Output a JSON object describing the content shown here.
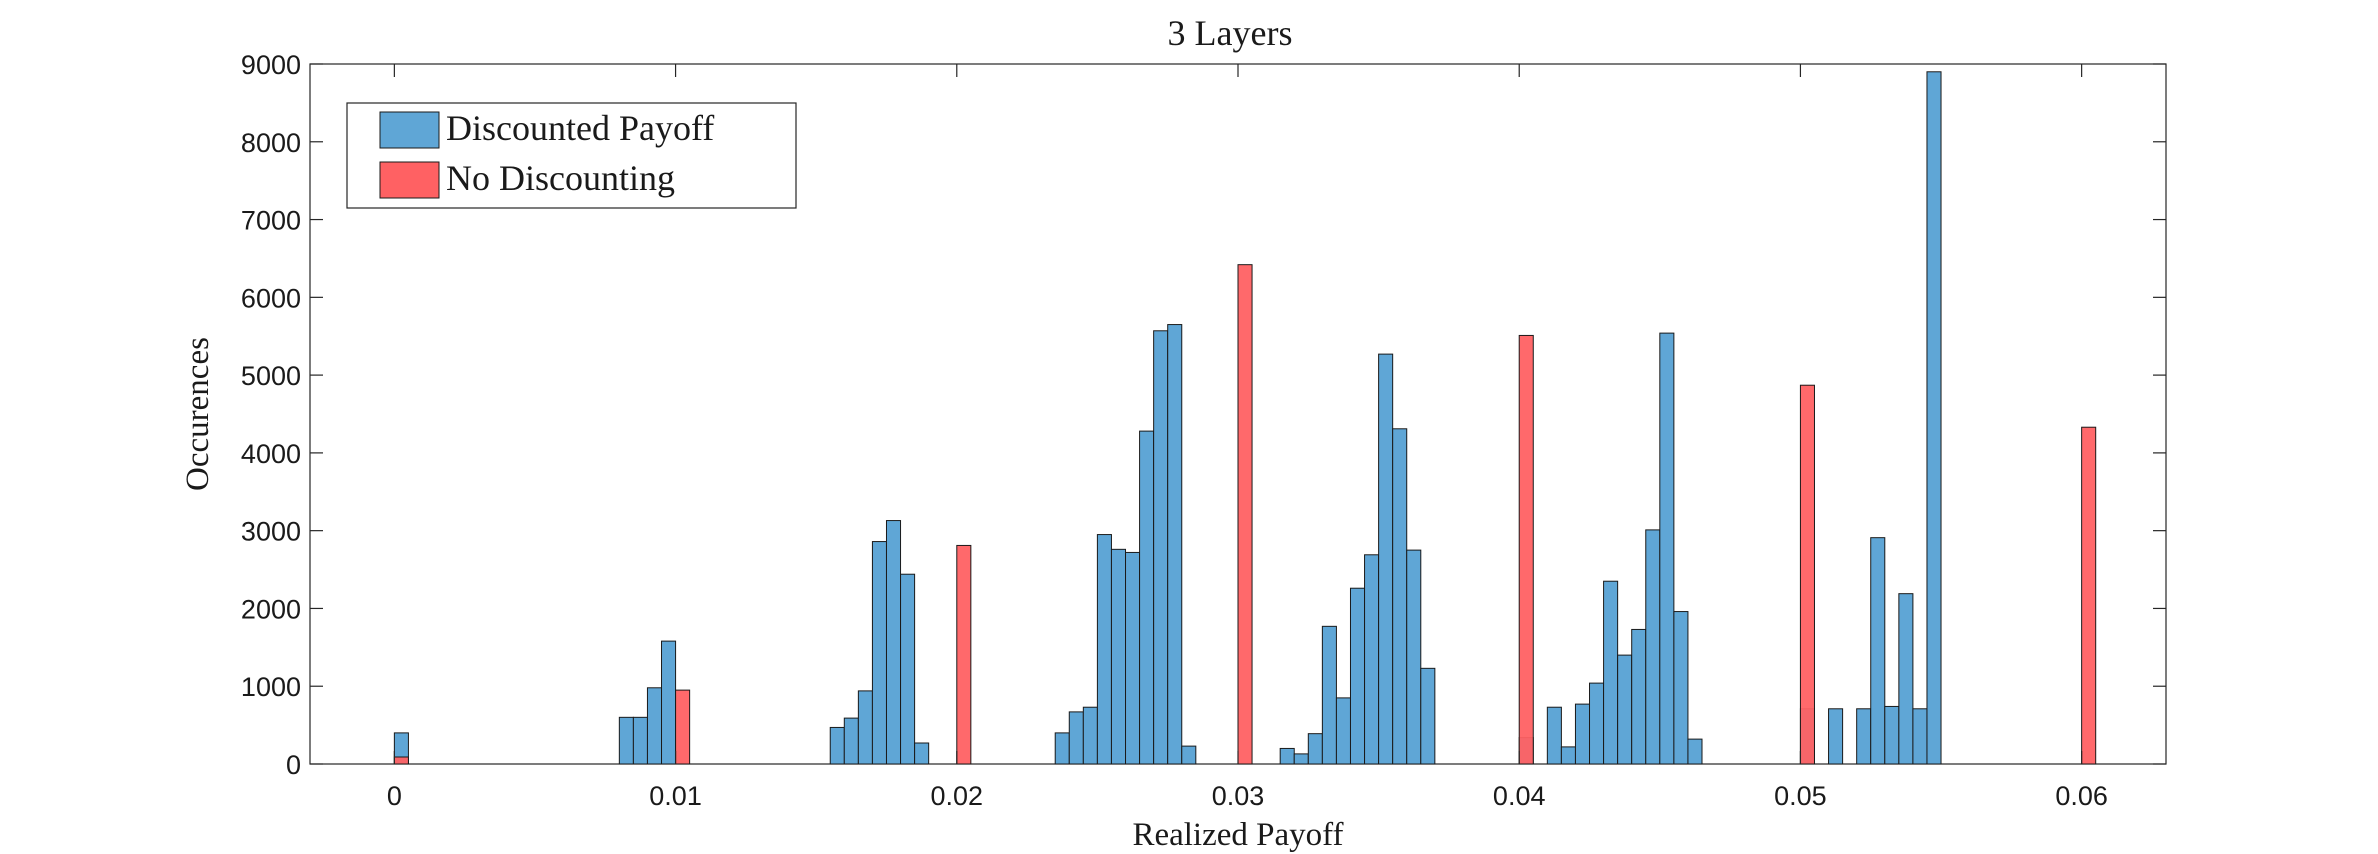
{
  "chart_data": {
    "type": "bar",
    "title": "3 Layers",
    "xlabel": "Realized Payoff",
    "ylabel": "Occurences",
    "xlim": [
      -0.003,
      0.063
    ],
    "ylim": [
      0,
      9000
    ],
    "xticks": [
      0,
      0.01,
      0.02,
      0.03,
      0.04,
      0.05,
      0.06
    ],
    "xtick_labels": [
      "0",
      "0.01",
      "0.02",
      "0.03",
      "0.04",
      "0.05",
      "0.06"
    ],
    "yticks": [
      0,
      1000,
      2000,
      3000,
      4000,
      5000,
      6000,
      7000,
      8000,
      9000
    ],
    "ytick_labels": [
      "0",
      "1000",
      "2000",
      "3000",
      "4000",
      "5000",
      "6000",
      "7000",
      "8000",
      "9000"
    ],
    "grid": false,
    "legend_position": "top-left",
    "series": [
      {
        "name": "Discounted Payoff",
        "color": "#5fa6d6",
        "bin_width": 0.0005,
        "bins": [
          [
            0,
            400
          ],
          [
            0.008,
            600
          ],
          [
            0.0085,
            600
          ],
          [
            0.009,
            980
          ],
          [
            0.0095,
            1580
          ],
          [
            0.0155,
            470
          ],
          [
            0.016,
            590
          ],
          [
            0.0165,
            940
          ],
          [
            0.017,
            2860
          ],
          [
            0.0175,
            3130
          ],
          [
            0.018,
            2440
          ],
          [
            0.0185,
            270
          ],
          [
            0.0235,
            400
          ],
          [
            0.024,
            670
          ],
          [
            0.0245,
            730
          ],
          [
            0.025,
            2950
          ],
          [
            0.0255,
            2760
          ],
          [
            0.026,
            2720
          ],
          [
            0.0265,
            4280
          ],
          [
            0.027,
            5570
          ],
          [
            0.0275,
            5650
          ],
          [
            0.028,
            230
          ],
          [
            0.0315,
            200
          ],
          [
            0.032,
            130
          ],
          [
            0.0325,
            390
          ],
          [
            0.033,
            1770
          ],
          [
            0.0335,
            850
          ],
          [
            0.034,
            2260
          ],
          [
            0.0345,
            2690
          ],
          [
            0.035,
            5270
          ],
          [
            0.0355,
            4310
          ],
          [
            0.036,
            2750
          ],
          [
            0.0365,
            1230
          ],
          [
            0.04,
            340
          ],
          [
            0.041,
            730
          ],
          [
            0.0415,
            220
          ],
          [
            0.042,
            770
          ],
          [
            0.0425,
            1040
          ],
          [
            0.043,
            2350
          ],
          [
            0.0435,
            1400
          ],
          [
            0.044,
            1730
          ],
          [
            0.0445,
            3010
          ],
          [
            0.045,
            5540
          ],
          [
            0.0455,
            1960
          ],
          [
            0.046,
            320
          ],
          [
            0.05,
            710
          ],
          [
            0.051,
            710
          ],
          [
            0.052,
            710
          ],
          [
            0.0525,
            2910
          ],
          [
            0.053,
            740
          ],
          [
            0.0535,
            2190
          ],
          [
            0.054,
            710
          ],
          [
            0.0545,
            8900
          ]
        ]
      },
      {
        "name": "No Discounting",
        "color": "#ff6163",
        "bin_width": 0.0005,
        "bins": [
          [
            0,
            90
          ],
          [
            0.01,
            950
          ],
          [
            0.02,
            2810
          ],
          [
            0.03,
            6420
          ],
          [
            0.04,
            5510
          ],
          [
            0.05,
            4870
          ],
          [
            0.06,
            4330
          ]
        ]
      }
    ]
  }
}
